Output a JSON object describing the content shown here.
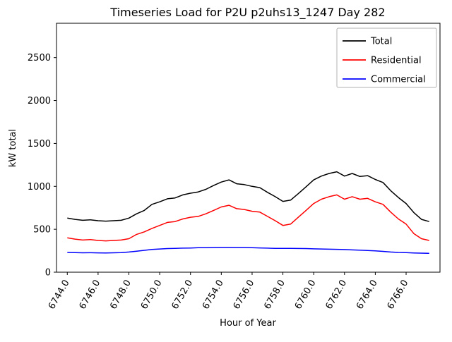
{
  "figure": {
    "title": "Timeseries Load for P2U p2uhs13_1247  Day 282",
    "xlabel": "Hour of Year",
    "ylabel": "kW total"
  },
  "chart_data": {
    "type": "line",
    "title": "Timeseries Load for P2U p2uhs13_1247  Day 282",
    "xlabel": "Hour of Year",
    "ylabel": "kW total",
    "grid": false,
    "legend_position": "upper right",
    "xlim": [
      6743.3,
      6768.2
    ],
    "ylim": [
      0,
      2900
    ],
    "xticks": [
      6744,
      6746,
      6748,
      6750,
      6752,
      6754,
      6756,
      6758,
      6760,
      6762,
      6764,
      6766
    ],
    "xtick_labels": [
      "6744.0",
      "6746.0",
      "6748.0",
      "6750.0",
      "6752.0",
      "6754.0",
      "6756.0",
      "6758.0",
      "6760.0",
      "6762.0",
      "6764.0",
      "6766.0"
    ],
    "yticks": [
      0,
      500,
      1000,
      1500,
      2000,
      2500
    ],
    "x": [
      6744.0,
      6744.5,
      6745.0,
      6745.5,
      6746.0,
      6746.5,
      6747.0,
      6747.5,
      6748.0,
      6748.5,
      6749.0,
      6749.5,
      6750.0,
      6750.5,
      6751.0,
      6751.5,
      6752.0,
      6752.5,
      6753.0,
      6753.5,
      6754.0,
      6754.5,
      6755.0,
      6755.5,
      6756.0,
      6756.5,
      6757.0,
      6757.5,
      6758.0,
      6758.5,
      6759.0,
      6759.5,
      6760.0,
      6760.5,
      6761.0,
      6761.5,
      6762.0,
      6762.5,
      6763.0,
      6763.5,
      6764.0,
      6764.5,
      6765.0,
      6765.5,
      6766.0,
      6766.5,
      6767.0,
      6767.5
    ],
    "series": [
      {
        "name": "Total",
        "color": "#000000",
        "values": [
          630,
          615,
          605,
          610,
          600,
          595,
          600,
          605,
          630,
          680,
          720,
          790,
          820,
          855,
          865,
          900,
          920,
          935,
          965,
          1010,
          1050,
          1075,
          1030,
          1020,
          1000,
          985,
          930,
          880,
          825,
          840,
          915,
          995,
          1075,
          1120,
          1150,
          1170,
          1120,
          1150,
          1115,
          1125,
          1080,
          1045,
          950,
          870,
          800,
          695,
          615,
          590
        ]
      },
      {
        "name": "Residential",
        "color": "#ff0000",
        "values": [
          400,
          385,
          375,
          380,
          370,
          365,
          370,
          375,
          390,
          440,
          470,
          510,
          545,
          580,
          590,
          620,
          640,
          650,
          680,
          720,
          760,
          780,
          740,
          730,
          710,
          700,
          650,
          600,
          545,
          560,
          640,
          720,
          800,
          850,
          880,
          900,
          850,
          880,
          850,
          860,
          820,
          790,
          700,
          620,
          560,
          450,
          390,
          370
        ]
      },
      {
        "name": "Commercial",
        "color": "#0000ff",
        "values": [
          230,
          228,
          226,
          227,
          225,
          224,
          226,
          228,
          235,
          245,
          255,
          265,
          270,
          275,
          278,
          280,
          282,
          285,
          285,
          288,
          290,
          290,
          288,
          288,
          285,
          283,
          280,
          278,
          278,
          277,
          276,
          275,
          272,
          270,
          268,
          266,
          264,
          260,
          256,
          252,
          248,
          242,
          235,
          230,
          228,
          224,
          222,
          220
        ]
      }
    ]
  }
}
